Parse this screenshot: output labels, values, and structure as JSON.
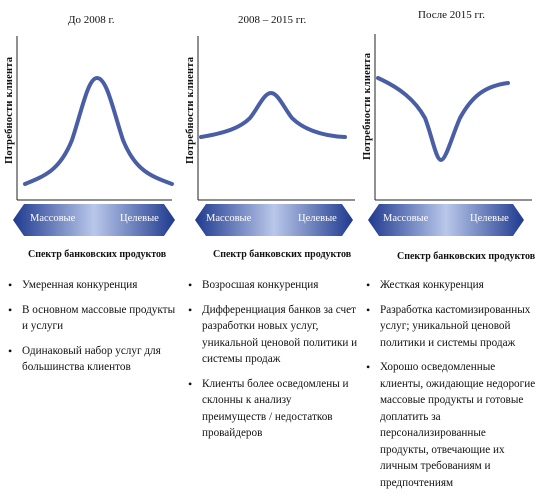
{
  "diagram": {
    "y_axis_label": "Потребности клиента",
    "x_axis_label": "Спектр банковских продуктов",
    "arrow_left_label": "Массовые",
    "arrow_right_label": "Целевые",
    "colors": {
      "curve": "#4a5ea6",
      "arrow_dark": "#1f3a8f",
      "arrow_light": "#b9c7ea"
    },
    "panels": [
      {
        "title": "До 2008 г.",
        "curve_shape": "bell",
        "bullets": [
          "Умеренная конкуренция",
          "В основном массовые продукты и услуги",
          "Одинаковый набор услуг для большинства клиентов"
        ]
      },
      {
        "title": "2008 – 2015 гг.",
        "curve_shape": "flat-bell",
        "bullets": [
          "Возросшая конкуренция",
          "Дифференциация банков за счет разработки новых услуг, уникальной ценовой политики и системы продаж",
          "Клиенты более осведомлены и склонны к анализу преимуществ / недостатков провайдеров"
        ]
      },
      {
        "title": "После 2015 гг.",
        "curve_shape": "inverted-bell",
        "bullets": [
          "Жесткая конкуренция",
          "Разработка кастомизированных услуг; уникальной ценовой политики и системы продаж",
          "Хорошо осведомленные клиенты, ожидающие недорогие массовые продукты и готовые доплатить за персонализированные продукты, отвечающие их личным требованиям и предпочтениям"
        ]
      }
    ]
  }
}
